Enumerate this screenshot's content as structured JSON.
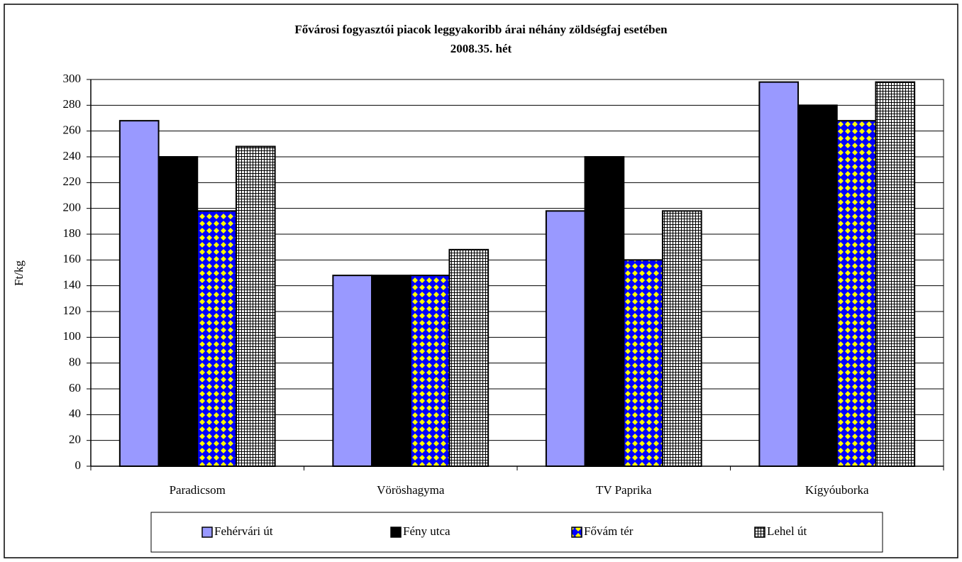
{
  "chart_data": {
    "type": "bar",
    "title": "Fővárosi fogyasztói piacok leggyakoribb árai néhány zöldségfaj esetében",
    "subtitle": "2008.35. hét",
    "y_label": "Ft/kg",
    "categories": [
      "Paradicsom",
      "Vöröshagyma",
      "TV Paprika",
      "Kígyóuborka"
    ],
    "series": [
      {
        "name": "Fehérvári út",
        "color": "#9999ff",
        "values": [
          268,
          148,
          198,
          298
        ]
      },
      {
        "name": "Fény utca",
        "color": "#000000",
        "values": [
          240,
          148,
          240,
          280
        ]
      },
      {
        "name": "Fővám tér",
        "color": "#0000ff",
        "pattern": "diamond",
        "pattern_color": "#ffff00",
        "values": [
          198,
          148,
          160,
          268
        ]
      },
      {
        "name": "Lehel út",
        "color": "#ffffff",
        "pattern": "grid",
        "pattern_color": "#000000",
        "values": [
          248,
          168,
          198,
          298
        ]
      }
    ],
    "ylim": [
      0,
      300
    ],
    "yticks": [
      0,
      20,
      40,
      60,
      80,
      100,
      120,
      140,
      160,
      180,
      200,
      220,
      240,
      260,
      280,
      300
    ],
    "grid": true,
    "legend": "bottom"
  }
}
